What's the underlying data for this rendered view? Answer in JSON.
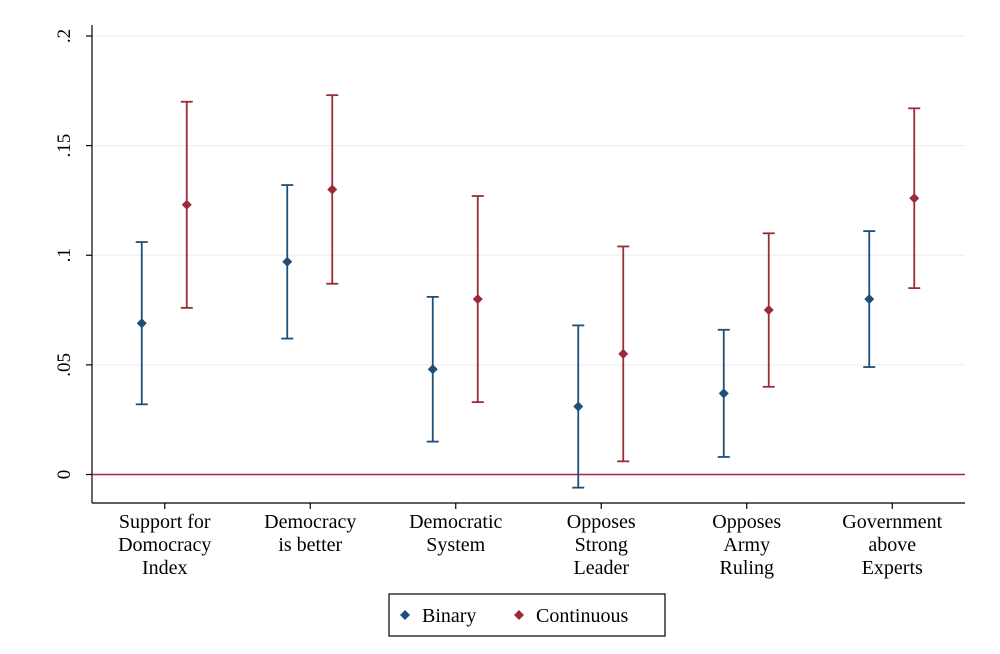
{
  "chart_data": {
    "type": "scatter",
    "subtype": "point-estimates-with-confidence-intervals",
    "title": "",
    "xlabel": "",
    "ylabel": "",
    "ylim": [
      -0.013,
      0.205
    ],
    "yticks": [
      {
        "value": 0,
        "label": "0"
      },
      {
        "value": 0.05,
        "label": ".05"
      },
      {
        "value": 0.1,
        "label": ".1"
      },
      {
        "value": 0.15,
        "label": ".15"
      },
      {
        "value": 0.2,
        "label": ".2"
      }
    ],
    "grid": true,
    "reference_line": {
      "value": 0,
      "color": "#b0203a"
    },
    "categories": [
      [
        "Support for",
        "Domocracy",
        "Index"
      ],
      [
        "Democracy",
        "is better"
      ],
      [
        "Democratic",
        "System"
      ],
      [
        "Opposes",
        "Strong",
        "Leader"
      ],
      [
        "Opposes",
        "Army",
        "Ruling"
      ],
      [
        "Government",
        "above",
        "Experts"
      ]
    ],
    "series": [
      {
        "name": "Binary",
        "color": "#1f4e79",
        "marker": "diamond",
        "points": [
          {
            "estimate": 0.069,
            "lower": 0.032,
            "upper": 0.106
          },
          {
            "estimate": 0.097,
            "lower": 0.062,
            "upper": 0.132
          },
          {
            "estimate": 0.048,
            "lower": 0.015,
            "upper": 0.081
          },
          {
            "estimate": 0.031,
            "lower": -0.006,
            "upper": 0.068
          },
          {
            "estimate": 0.037,
            "lower": 0.008,
            "upper": 0.066
          },
          {
            "estimate": 0.08,
            "lower": 0.049,
            "upper": 0.111
          }
        ]
      },
      {
        "name": "Continuous",
        "color": "#9b2c37",
        "marker": "diamond",
        "points": [
          {
            "estimate": 0.123,
            "lower": 0.076,
            "upper": 0.17
          },
          {
            "estimate": 0.13,
            "lower": 0.087,
            "upper": 0.173
          },
          {
            "estimate": 0.08,
            "lower": 0.033,
            "upper": 0.127
          },
          {
            "estimate": 0.055,
            "lower": 0.006,
            "upper": 0.104
          },
          {
            "estimate": 0.075,
            "lower": 0.04,
            "upper": 0.11
          },
          {
            "estimate": 0.126,
            "lower": 0.085,
            "upper": 0.167
          }
        ]
      }
    ],
    "legend": {
      "position": "bottom-center",
      "boxed": true
    }
  }
}
